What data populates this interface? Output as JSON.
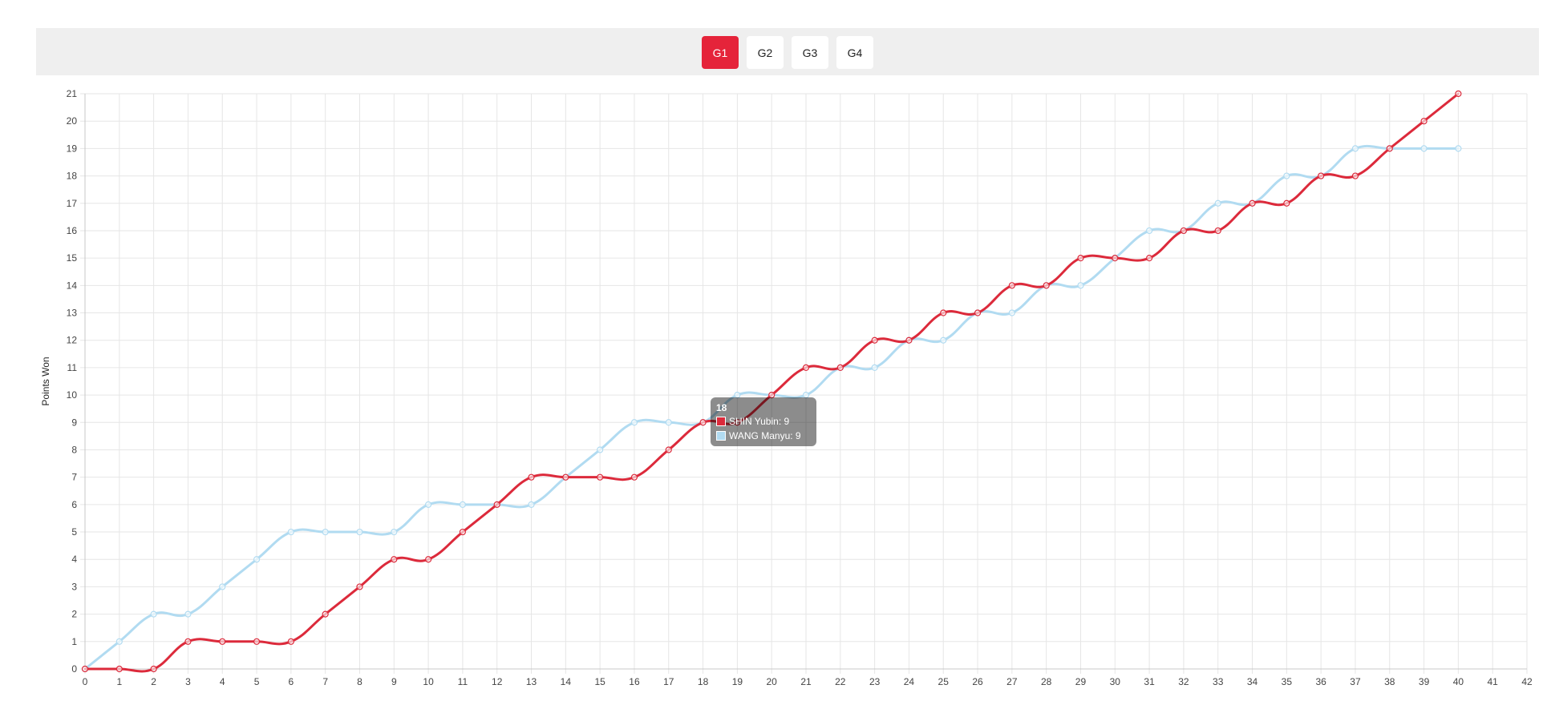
{
  "games": {
    "tabs": [
      {
        "label": "G1",
        "active": true
      },
      {
        "label": "G2",
        "active": false
      },
      {
        "label": "G3",
        "active": false
      },
      {
        "label": "G4",
        "active": false
      }
    ]
  },
  "colors": {
    "red_series": "#dc2a3b",
    "blue_series": "#b1dbf1",
    "active_tab": "#e5243a",
    "toolbar_bg": "#efefef",
    "grid": "#e6e6e6"
  },
  "chart_data": {
    "type": "line",
    "title": "",
    "xlabel": "",
    "ylabel": "Points Won",
    "xlim": [
      0,
      42
    ],
    "ylim": [
      0,
      21
    ],
    "grid": true,
    "x": [
      0,
      1,
      2,
      3,
      4,
      5,
      6,
      7,
      8,
      9,
      10,
      11,
      12,
      13,
      14,
      15,
      16,
      17,
      18,
      19,
      20,
      21,
      22,
      23,
      24,
      25,
      26,
      27,
      28,
      29,
      30,
      31,
      32,
      33,
      34,
      35,
      36,
      37,
      38,
      39,
      40
    ],
    "x_ticks": [
      0,
      1,
      2,
      3,
      4,
      5,
      6,
      7,
      8,
      9,
      10,
      11,
      12,
      13,
      14,
      15,
      16,
      17,
      18,
      19,
      20,
      21,
      22,
      23,
      24,
      25,
      26,
      27,
      28,
      29,
      30,
      31,
      32,
      33,
      34,
      35,
      36,
      37,
      38,
      39,
      40,
      41,
      42
    ],
    "y_ticks": [
      0,
      1,
      2,
      3,
      4,
      5,
      6,
      7,
      8,
      9,
      10,
      11,
      12,
      13,
      14,
      15,
      16,
      17,
      18,
      19,
      20,
      21
    ],
    "series": [
      {
        "name": "SHIN Yubin",
        "color": "#dc2a3b",
        "values": [
          0,
          0,
          0,
          1,
          1,
          1,
          1,
          2,
          3,
          4,
          4,
          5,
          6,
          7,
          7,
          7,
          7,
          8,
          9,
          9,
          10,
          11,
          11,
          12,
          12,
          13,
          13,
          14,
          14,
          15,
          15,
          15,
          16,
          16,
          17,
          17,
          18,
          18,
          19,
          20,
          21
        ]
      },
      {
        "name": "WANG Manyu",
        "color": "#b1dbf1",
        "values": [
          0,
          1,
          2,
          2,
          3,
          4,
          5,
          5,
          5,
          5,
          6,
          6,
          6,
          6,
          7,
          8,
          9,
          9,
          9,
          10,
          10,
          10,
          11,
          11,
          12,
          12,
          13,
          13,
          14,
          14,
          15,
          16,
          16,
          17,
          17,
          18,
          18,
          19,
          19,
          19,
          19
        ]
      }
    ],
    "tooltip": {
      "title": "18",
      "rows": [
        {
          "label": "SHIN Yubin: 9"
        },
        {
          "label": "WANG Manyu: 9"
        }
      ]
    }
  }
}
